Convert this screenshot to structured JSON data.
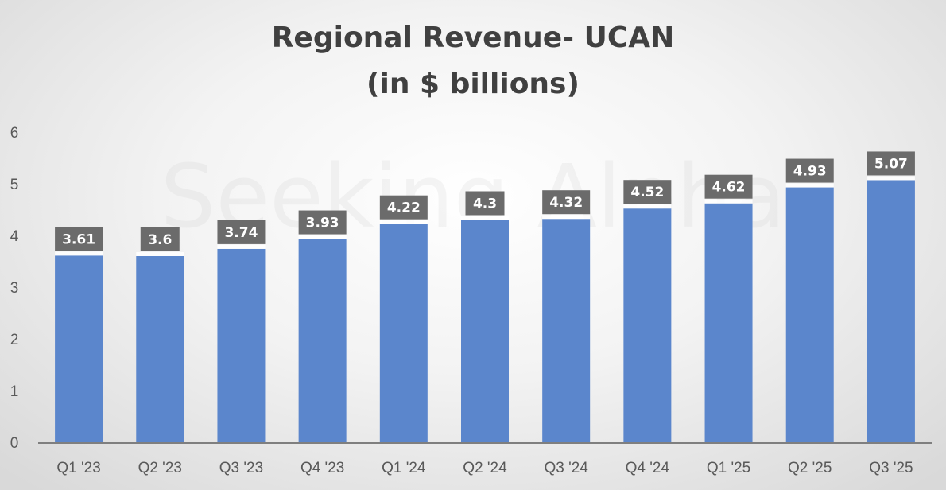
{
  "chart_data": {
    "type": "bar",
    "title": "Regional Revenue- UCAN",
    "subtitle": "(in $ billions)",
    "categories": [
      "Q1 '23",
      "Q2 '23",
      "Q3 '23",
      "Q4 '23",
      "Q1 '24",
      "Q2 '24",
      "Q3 '24",
      "Q4 '24",
      "Q1 '25",
      "Q2 '25",
      "Q3 '25"
    ],
    "values": [
      3.61,
      3.6,
      3.74,
      3.93,
      4.22,
      4.3,
      4.32,
      4.52,
      4.62,
      4.93,
      5.07
    ],
    "data_labels": [
      "3.61",
      "3.6",
      "3.74",
      "3.93",
      "4.22",
      "4.3",
      "4.32",
      "4.52",
      "4.62",
      "4.93",
      "5.07"
    ],
    "y_ticks": [
      "0",
      "1",
      "2",
      "3",
      "4",
      "5",
      "6"
    ],
    "ylim": [
      0,
      6
    ],
    "xlabel": "",
    "ylabel": "",
    "grid": false,
    "legend": "none",
    "bar_color": "#5b86cc",
    "label_box_color": "#6b6b6b",
    "watermark": "Seeking Alpha"
  }
}
